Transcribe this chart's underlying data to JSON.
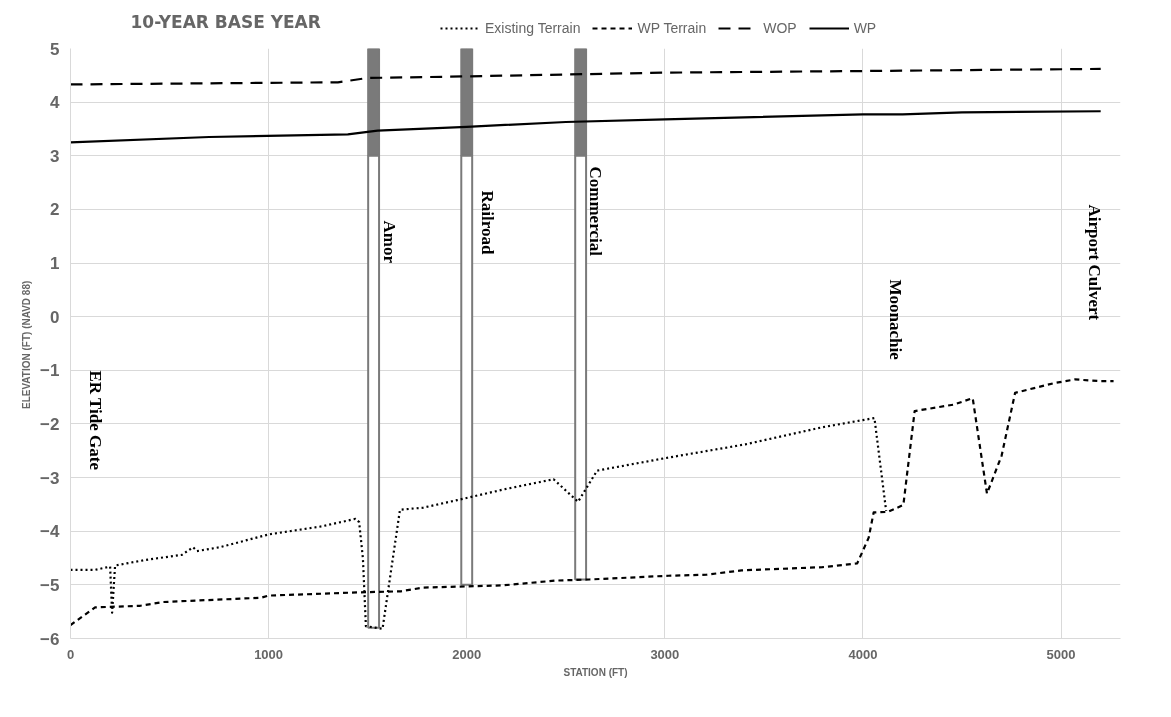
{
  "chart_data": {
    "type": "line",
    "title": "10-YEAR BASE YEAR",
    "xlabel": "STATION (FT)",
    "ylabel": "ELEVATION (FT)  (NAVD 88)",
    "xlim": [
      0,
      5300
    ],
    "xticks": [
      0,
      1000,
      2000,
      3000,
      4000,
      5000
    ],
    "ylim": [
      -6,
      5
    ],
    "yticks": [
      -6,
      -5,
      -4,
      -3,
      -2,
      -1,
      0,
      1,
      2,
      3,
      4,
      5
    ],
    "grid": true,
    "legend": "top",
    "marker": "none",
    "series": [
      {
        "type": "bar",
        "color": "#7a7a7a",
        "x": [
          1530,
          2000,
          2575
        ],
        "base": [
          3,
          3,
          3
        ],
        "values": [
          2,
          2,
          2
        ]
      },
      {
        "type": "bar",
        "color": "#ffffff",
        "x": [
          1530,
          2000,
          2575
        ],
        "base": [
          -5.8,
          -5.0,
          -4.9
        ],
        "values": [
          8.8,
          8,
          7.9
        ]
      },
      {
        "name": "Existing Terrain",
        "color": "#000000",
        "line_style": "dotted",
        "x": [
          0,
          124,
          200,
          210,
          225,
          371,
          562,
          619,
          638,
          752,
          1000,
          1267,
          1438,
          1457,
          1476,
          1491,
          1575,
          1663,
          1781,
          1952,
          2200,
          2438,
          2562,
          2658,
          2998,
          3407,
          3796,
          4058,
          4117
        ],
        "values": [
          -4.72,
          -4.72,
          -4.66,
          -5.52,
          -4.64,
          -4.54,
          -4.44,
          -4.3,
          -4.37,
          -4.3,
          -4.06,
          -3.91,
          -3.77,
          -3.83,
          -4.51,
          -5.77,
          -5.82,
          -3.6,
          -3.56,
          -3.42,
          -3.21,
          -3.03,
          -3.45,
          -2.87,
          -2.64,
          -2.38,
          -2.06,
          -1.89,
          -3.62
        ]
      },
      {
        "name": "WP Terrain",
        "color": "#000000",
        "line_style": "dashed",
        "x": [
          0,
          124,
          352,
          467,
          962,
          1000,
          1457,
          1667,
          1781,
          1990,
          2181,
          2448,
          2619,
          3018,
          3212,
          3387,
          3796,
          3971,
          4029,
          4054,
          4126,
          4204,
          4261,
          4457,
          4554,
          4626,
          4700,
          4768,
          4963,
          5070,
          5197,
          5265
        ],
        "values": [
          -5.75,
          -5.42,
          -5.39,
          -5.32,
          -5.24,
          -5.2,
          -5.14,
          -5.12,
          -5.05,
          -5.03,
          -5.01,
          -4.92,
          -4.9,
          -4.83,
          -4.81,
          -4.73,
          -4.67,
          -4.6,
          -4.12,
          -3.65,
          -3.64,
          -3.51,
          -1.76,
          -1.64,
          -1.52,
          -3.3,
          -2.59,
          -1.42,
          -1.24,
          -1.17,
          -1.2,
          -1.2
        ]
      },
      {
        "name": "WOP",
        "color": "#000000",
        "line_style": "dashed",
        "x": [
          0,
          1350,
          1500,
          2000,
          3000,
          4000,
          5200
        ],
        "values": [
          4.33,
          4.37,
          4.45,
          4.48,
          4.55,
          4.58,
          4.62
        ]
      },
      {
        "name": "WP",
        "color": "#000000",
        "line_style": "solid",
        "x": [
          0,
          700,
          1400,
          1550,
          2000,
          2500,
          3000,
          4000,
          4200,
          4500,
          5200
        ],
        "values": [
          3.25,
          3.35,
          3.4,
          3.47,
          3.54,
          3.63,
          3.68,
          3.77,
          3.77,
          3.81,
          3.83
        ]
      }
    ],
    "annotations": [
      "ER Tide Gate",
      "Amor",
      "Railroad",
      "Commercial",
      "Moonachie",
      "Airport Culvert"
    ]
  }
}
